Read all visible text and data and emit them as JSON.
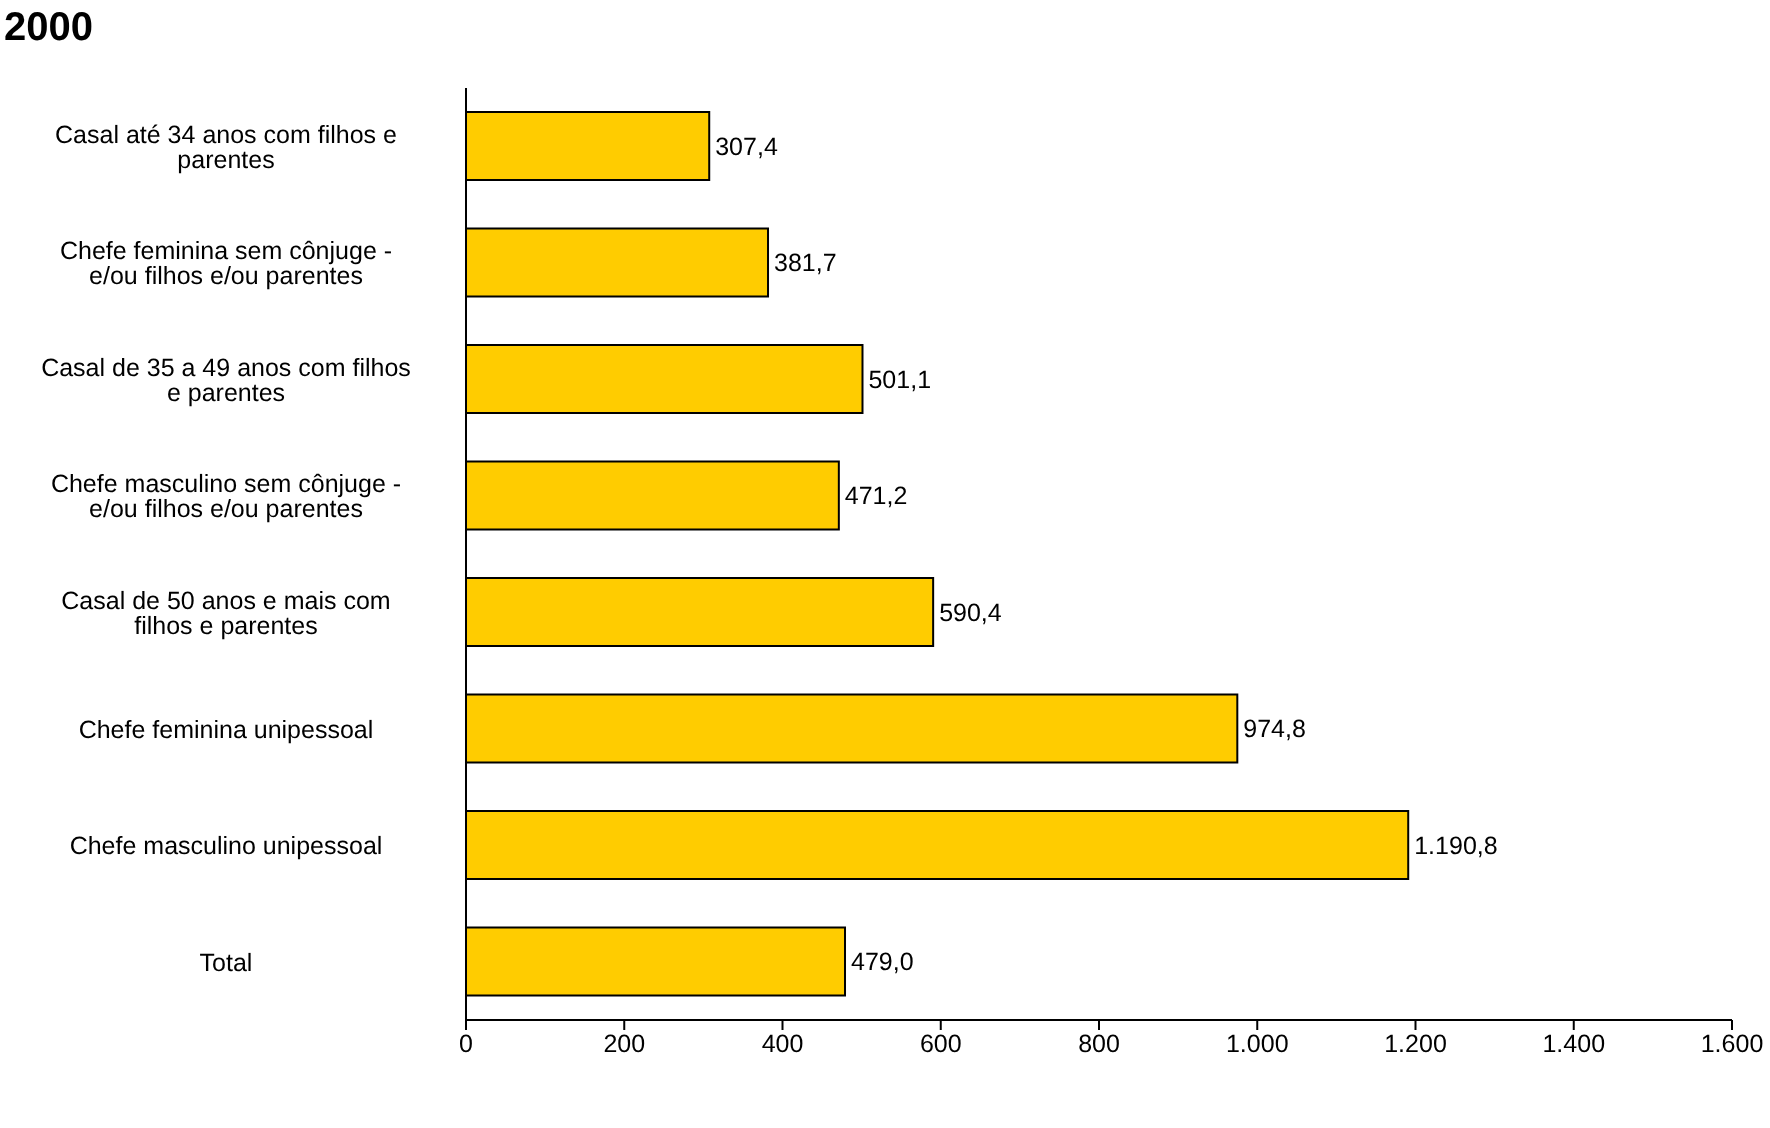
{
  "chart_data": {
    "type": "bar",
    "orientation": "horizontal",
    "title": "2000",
    "categories": [
      "Casal até 34 anos com filhos e parentes",
      "Chefe feminina sem cônjuge - e/ou filhos e/ou parentes",
      "Casal de 35 a 49 anos com filhos e parentes",
      "Chefe masculino sem cônjuge - e/ou filhos e/ou parentes",
      "Casal de 50 anos e mais com filhos e parentes",
      "Chefe feminina unipessoal",
      "Chefe masculino unipessoal",
      "Total"
    ],
    "values": [
      307.4,
      381.7,
      501.1,
      471.2,
      590.4,
      974.8,
      1190.8,
      479.0
    ],
    "value_labels": [
      "307,4",
      "381,7",
      "501,1",
      "471,2",
      "590,4",
      "974,8",
      "1.190,8",
      "479,0"
    ],
    "color": "#ffcc00",
    "xlim": [
      0,
      1600
    ],
    "xticks": [
      0,
      200,
      400,
      600,
      800,
      {
        "value": 1000,
        "label": "1.000"
      },
      {
        "value": 1200,
        "label": "1.200"
      },
      {
        "value": 1400,
        "label": "1.400"
      },
      {
        "value": 1600,
        "label": "1.600"
      }
    ],
    "grid": false,
    "legend": false
  }
}
